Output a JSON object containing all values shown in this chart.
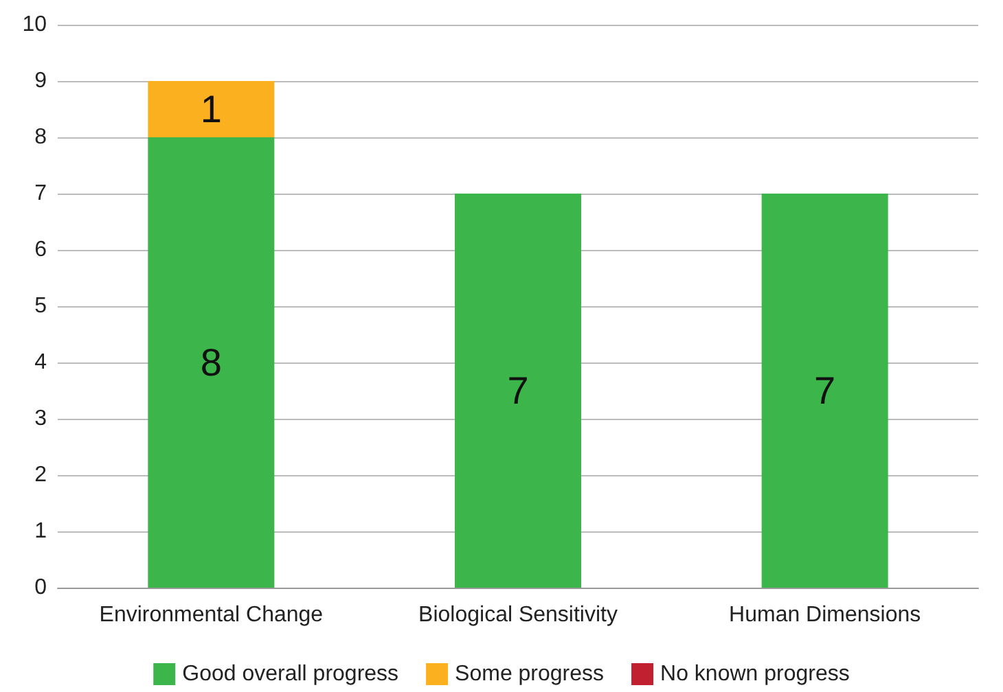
{
  "chart_data": {
    "type": "bar",
    "stacked": true,
    "categories": [
      "Environmental Change",
      "Biological Sensitivity",
      "Human Dimensions"
    ],
    "series": [
      {
        "name": "Good overall progress",
        "color": "#3cb54a",
        "values": [
          8,
          7,
          7
        ],
        "value_labels": [
          "8",
          "7",
          "7"
        ]
      },
      {
        "name": "Some progress",
        "color": "#fbb11f",
        "values": [
          1,
          0,
          0
        ],
        "value_labels": [
          "1",
          null,
          null
        ]
      },
      {
        "name": "No known progress",
        "color": "#c0202f",
        "values": [
          0,
          0,
          0
        ],
        "value_labels": [
          null,
          null,
          null
        ]
      }
    ],
    "ylim": [
      0,
      10
    ],
    "yticks": [
      0,
      1,
      2,
      3,
      4,
      5,
      6,
      7,
      8,
      9,
      10
    ],
    "grid": "y",
    "legend": "bottom"
  }
}
